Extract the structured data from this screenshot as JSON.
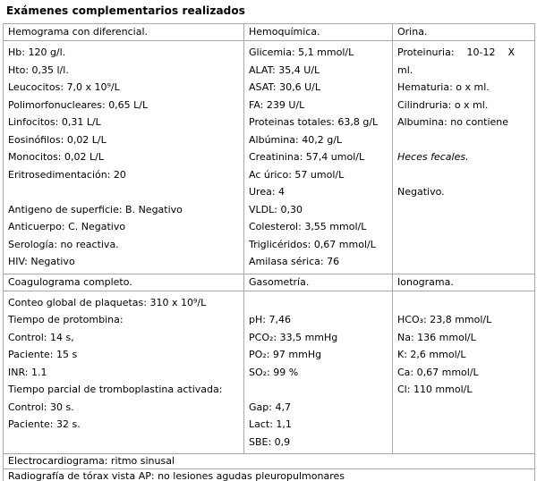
{
  "title": "Exámenes complementarios realizados",
  "sections": [
    {
      "headers": [
        "Hemograma con diferencial.",
        "Hemoquímica.",
        "Orina."
      ],
      "cells": [
        {
          "lines": [
            "Hb: 120 g/l.",
            "Hto: 0,35 l/l.",
            "Leucocitos: 7,0 x 10⁹/L",
            "Polimorfonucleares: 0,65 L/L",
            "Linfocitos: 0,31 L/L",
            "Eosinófilos: 0,02 L/L",
            "Monocitos: 0,02 L/L",
            "Eritrosedimentación: 20",
            "",
            "Antigeno de superficie: B. Negativo",
            "Anticuerpo: C. Negativo",
            "Serología: no reactiva.",
            "HIV: Negativo"
          ]
        },
        {
          "lines": [
            "Glicemia: 5,1 mmol/L",
            "ALAT: 35,4 U/L",
            "ASAT: 30,6 U/L",
            "FA: 239 U/L",
            "Proteinas totales: 63,8 g/L",
            "Albúmina: 40,2 g/L",
            "Creatinina: 57,4 umol/L",
            "Ac úrico: 57 umol/L",
            "Urea: 4",
            "VLDL: 0,30",
            "Colesterol: 3,55 mmol/L",
            "Triglicéridos: 0,67 mmol/L",
            "Amilasa sérica: 76"
          ]
        },
        {
          "lines": [
            "Proteinuria:    10-12    X",
            "ml.",
            "Hematuria: o x ml.",
            "Cilindruria: o x ml.",
            "Albumina: no contiene",
            "",
            {
              "text": "Heces fecales.",
              "italic": true
            },
            "",
            "Negativo."
          ]
        }
      ]
    },
    {
      "headers": [
        "Coagulograma completo.",
        "Gasometría.",
        "Ionograma."
      ],
      "cells": [
        {
          "lines": [
            "Conteo global de plaquetas: 310 x 10⁹/L",
            "Tiempo de protombina:",
            "Control: 14 s,",
            "Paciente: 15 s",
            "INR: 1.1",
            "Tiempo parcial de tromboplastina activada:",
            "Control: 30 s.",
            "Paciente: 32 s."
          ]
        },
        {
          "lines": [
            "",
            "pH: 7,46",
            "PCO₂: 33,5 mmHg",
            "PO₂: 97 mmHg",
            "SO₂: 99 %",
            "",
            "Gap: 4,7",
            "Lact: 1,1",
            "SBE: 0,9"
          ]
        },
        {
          "lines": [
            "",
            "HCO₃: 23,8 mmol/L",
            "Na: 136 mmol/L",
            "K: 2,6 mmol/L",
            "Ca: 0,67 mmol/L",
            "Cl: 110 mmol/L"
          ]
        }
      ]
    }
  ],
  "footer_rows": [
    "Electrocardiograma: ritmo sinusal",
    "Radiografía de tórax vista AP: no lesiones agudas pleuropulmonares"
  ]
}
